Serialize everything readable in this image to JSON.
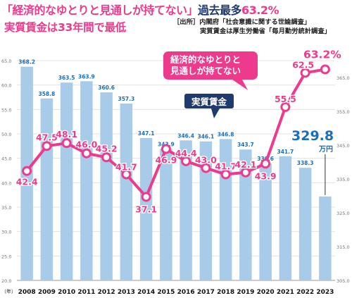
{
  "title": {
    "part1": "「経済的なゆとりと見通しが持てない」",
    "part2": "過去最多",
    "part3": "63.2%"
  },
  "subtitle": "実質賃金は33年間で最低",
  "source": {
    "line1": "［出所］内閣府「社会意識に関する世論調査」",
    "line2": "実質賃金は厚生労働省「毎月勤労統計調査」"
  },
  "annotations": {
    "line_label": "経済的なゆとりと\n見通しが持てない",
    "bar_label": "実質賃金",
    "last_bar_value": "329.8",
    "last_bar_unit": "万円",
    "last_line_value": "63.2%"
  },
  "colors": {
    "pink": "#ee3a8c",
    "bar": "#a8cbea",
    "bar_label": "#1a6fb8",
    "navy": "#1f3a6e"
  },
  "chart_data": {
    "type": "bar",
    "x_unit_label": "（年）",
    "categories": [
      "2008",
      "2009",
      "2010",
      "2011",
      "2012",
      "2013",
      "2014",
      "2015",
      "2016",
      "2017",
      "2018",
      "2019",
      "2020",
      "2021",
      "2022",
      "2023"
    ],
    "series": [
      {
        "name": "実質賃金",
        "type": "bar",
        "axis": "right",
        "values": [
          368.2,
          358.8,
          363.5,
          363.9,
          360.6,
          357.3,
          347.1,
          343.9,
          346.4,
          346.1,
          346.8,
          343.7,
          339.6,
          341.7,
          338.3,
          329.8
        ],
        "labels": [
          "368.2",
          "358.8",
          "363.5",
          "363.9",
          "360.6",
          "357.3",
          "347.1",
          "343.9",
          "346.4",
          "346.1",
          "346.8",
          "343.7",
          "339.6",
          "341.7",
          "338.3",
          "329.8"
        ]
      },
      {
        "name": "経済的なゆとりと見通しが持てない",
        "type": "line",
        "axis": "left",
        "values": [
          42.4,
          47.5,
          48.1,
          46.0,
          45.2,
          41.7,
          37.1,
          46.9,
          44.4,
          43.0,
          41.7,
          42.1,
          43.9,
          55.5,
          62.5,
          63.2
        ],
        "labels": [
          "42.4",
          "47.5",
          "48.1",
          "46.0",
          "45.2",
          "41.7",
          "37.1",
          "46.9",
          "44.4",
          "43.0",
          "41.7",
          "42.1",
          "43.9",
          "55.5",
          "62.5",
          "63.2%"
        ]
      }
    ],
    "y_left": {
      "ylim": [
        20,
        65
      ],
      "ticks": [
        "20.0",
        "25.0",
        "30.0",
        "35.0",
        "40.0",
        "45.0",
        "50.0",
        "55.0",
        "60.0",
        "65.0"
      ]
    },
    "y_right": {
      "ylim": [
        305,
        370
      ],
      "ticks": [
        "305.0",
        "315.0",
        "325.0",
        "335.0",
        "345.0",
        "355.0",
        "365.0"
      ]
    },
    "grid": true
  }
}
